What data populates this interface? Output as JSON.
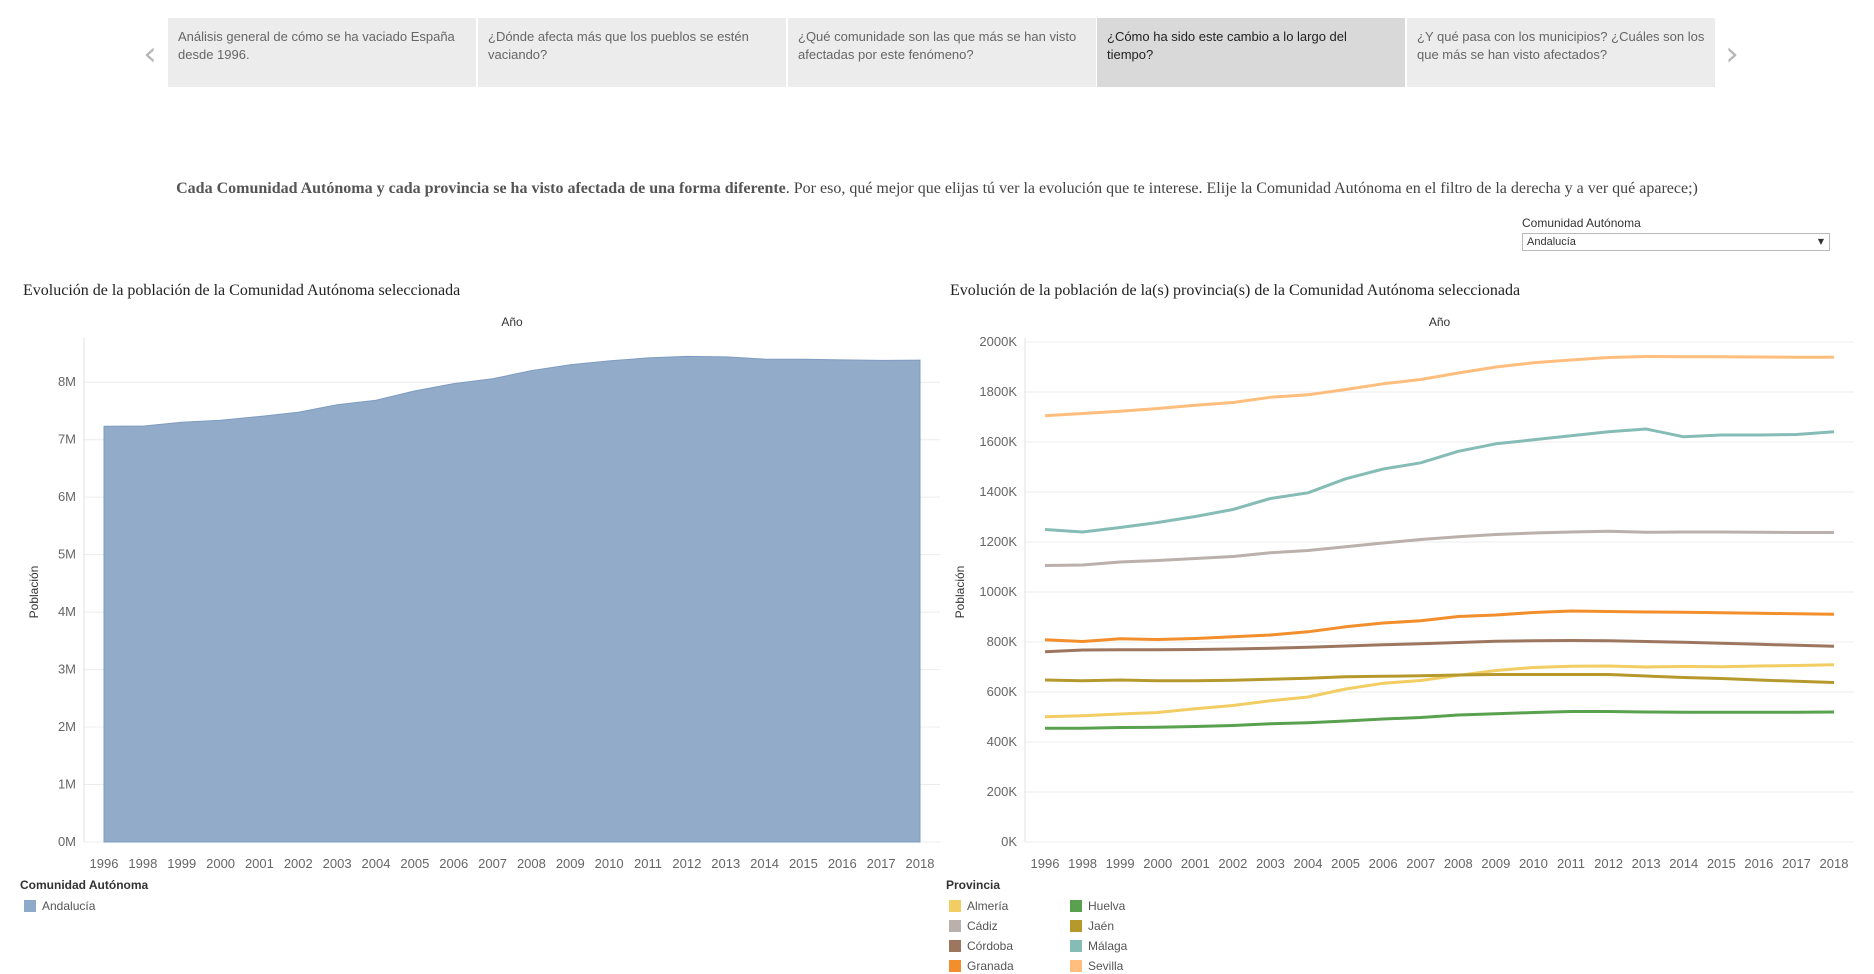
{
  "story": {
    "tabs": [
      {
        "label": "Análisis general de cómo se ha vaciado España desde 1996."
      },
      {
        "label": "¿Dónde afecta más que los pueblos se estén vaciando?"
      },
      {
        "label": "¿Qué comunidade son las que más se han visto afectadas por este fenómeno?"
      },
      {
        "label": "¿Cómo ha sido este cambio a lo largo del tiempo?"
      },
      {
        "label": "¿Y qué pasa con los municipios? ¿Cuáles son los que más se han visto afectados?"
      }
    ],
    "active_tab": 3,
    "prev_icon": "chevron-left-icon",
    "next_icon": "chevron-right-icon"
  },
  "intro": {
    "bold": "Cada Comunidad Autónoma y cada provincia se ha visto afectada de una forma diferente",
    "rest": ". Por eso, qué mejor que elijas tú ver la evolución que te interese. Elije la Comunidad Autónoma en el filtro de la derecha y a ver qué aparece;)"
  },
  "filter": {
    "label": "Comunidad Autónoma",
    "value": "Andalucía",
    "icon": "dropdown-caret-icon"
  },
  "chart_data": [
    {
      "type": "area",
      "title": "Evolución de la población de la Comunidad Autónoma seleccionada",
      "xlabel": "Año",
      "ylabel": "Población",
      "x": [
        1996,
        1998,
        1999,
        2000,
        2001,
        2002,
        2003,
        2004,
        2005,
        2006,
        2007,
        2008,
        2009,
        2010,
        2011,
        2012,
        2013,
        2014,
        2015,
        2016,
        2017,
        2018
      ],
      "ylim": [
        0,
        8700000
      ],
      "yticks": [
        0,
        1000000,
        2000000,
        3000000,
        4000000,
        5000000,
        6000000,
        7000000,
        8000000
      ],
      "ytick_labels": [
        "0M",
        "1M",
        "2M",
        "3M",
        "4M",
        "5M",
        "6M",
        "7M",
        "8M"
      ],
      "series": [
        {
          "name": "Andalucía",
          "color": "#8fa9c8",
          "values": [
            7234873,
            7236459,
            7305117,
            7340052,
            7403968,
            7478432,
            7606848,
            7687518,
            7849799,
            7975672,
            8059461,
            8202220,
            8302923,
            8370975,
            8424102,
            8449985,
            8440300,
            8402305,
            8399043,
            8388107,
            8379820,
            8384408
          ]
        }
      ],
      "legend_title": "Comunidad Autónoma",
      "legend_placement": "bottom-left",
      "grid": true
    },
    {
      "type": "line",
      "title": "Evolución de la población de la(s) provincia(s) de la Comunidad Autónoma seleccionada",
      "xlabel": "Año",
      "ylabel": "Población",
      "x": [
        1996,
        1998,
        1999,
        2000,
        2001,
        2002,
        2003,
        2004,
        2005,
        2006,
        2007,
        2008,
        2009,
        2010,
        2011,
        2012,
        2013,
        2014,
        2015,
        2016,
        2017,
        2018
      ],
      "ylim": [
        0,
        2000000
      ],
      "yticks": [
        0,
        200000,
        400000,
        600000,
        800000,
        1000000,
        1200000,
        1400000,
        1600000,
        1800000,
        2000000
      ],
      "ytick_labels": [
        "0K",
        "200K",
        "400K",
        "600K",
        "800K",
        "1000K",
        "1200K",
        "1400K",
        "1600K",
        "1800K",
        "2000K"
      ],
      "series": [
        {
          "name": "Almería",
          "color": "#f1cd63",
          "values": [
            501000,
            505000,
            512000,
            518000,
            533000,
            546000,
            565000,
            580000,
            612000,
            635000,
            646000,
            667000,
            686000,
            698000,
            703000,
            704000,
            700000,
            702000,
            701000,
            704000,
            706000,
            709000
          ]
        },
        {
          "name": "Cádiz",
          "color": "#bab0ac",
          "values": [
            1106000,
            1108000,
            1120000,
            1126000,
            1134000,
            1142000,
            1157000,
            1166000,
            1181000,
            1196000,
            1210000,
            1221000,
            1230000,
            1236000,
            1240000,
            1243000,
            1239000,
            1240000,
            1240000,
            1239000,
            1238000,
            1238000
          ]
        },
        {
          "name": "Córdoba",
          "color": "#9d7660",
          "values": [
            761000,
            768000,
            769000,
            769000,
            770000,
            772000,
            775000,
            779000,
            784000,
            789000,
            793000,
            798000,
            803000,
            805000,
            806000,
            805000,
            802000,
            799000,
            795000,
            791000,
            787000,
            783000
          ]
        },
        {
          "name": "Granada",
          "color": "#f28e2b",
          "values": [
            809000,
            802000,
            813000,
            810000,
            814000,
            821000,
            828000,
            841000,
            861000,
            876000,
            885000,
            902000,
            908000,
            918000,
            924000,
            922000,
            920000,
            919000,
            917000,
            915000,
            913000,
            911000
          ]
        },
        {
          "name": "Huelva",
          "color": "#59a14f",
          "values": [
            455000,
            455000,
            458000,
            459000,
            462000,
            466000,
            473000,
            477000,
            484000,
            492000,
            498000,
            508000,
            513000,
            518000,
            522000,
            522000,
            520000,
            519000,
            519000,
            519000,
            519000,
            520000
          ]
        },
        {
          "name": "Jaén",
          "color": "#b6992d",
          "values": [
            648000,
            645000,
            648000,
            645000,
            645000,
            647000,
            651000,
            655000,
            661000,
            663000,
            665000,
            668000,
            670000,
            670000,
            670000,
            670000,
            664000,
            658000,
            654000,
            648000,
            643000,
            638000
          ]
        },
        {
          "name": "Málaga",
          "color": "#86bcb6",
          "values": [
            1250000,
            1240000,
            1258000,
            1278000,
            1302000,
            1330000,
            1374000,
            1397000,
            1453000,
            1492000,
            1517000,
            1563000,
            1593000,
            1609000,
            1625000,
            1641000,
            1652000,
            1621000,
            1628000,
            1628000,
            1630000,
            1641000
          ]
        },
        {
          "name": "Sevilla",
          "color": "#ffbe7d",
          "values": [
            1705000,
            1714000,
            1723000,
            1734000,
            1747000,
            1758000,
            1779000,
            1789000,
            1810000,
            1833000,
            1850000,
            1876000,
            1900000,
            1917000,
            1928000,
            1938000,
            1942000,
            1941000,
            1941000,
            1940000,
            1939000,
            1939000
          ]
        }
      ],
      "legend_title": "Provincia",
      "legend_placement": "bottom-left",
      "grid": true
    }
  ]
}
